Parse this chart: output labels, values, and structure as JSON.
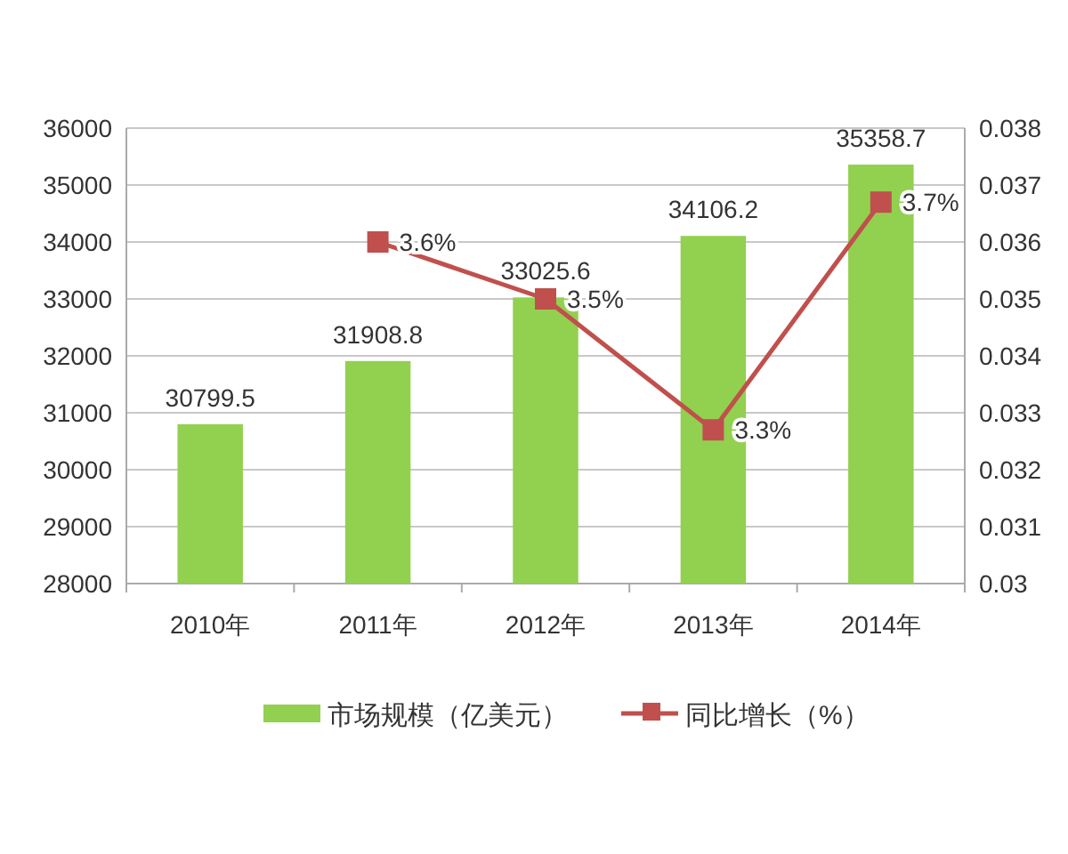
{
  "chart_data": {
    "type": "bar",
    "categories": [
      "2010年",
      "2011年",
      "2012年",
      "2013年",
      "2014年"
    ],
    "series": [
      {
        "name": "市场规模（亿美元）",
        "color": "#92d050",
        "values": [
          30799.5,
          31908.8,
          33025.6,
          34106.2,
          35358.7
        ],
        "value_labels": [
          "30799.5",
          "31908.8",
          "33025.6",
          "34106.2",
          "35358.7"
        ]
      },
      {
        "name": "同比增长（%）",
        "type": "line",
        "axis": "y2",
        "color": "#c0504d",
        "marker": "square",
        "values": [
          null,
          0.036,
          0.035,
          0.0327,
          0.0367
        ],
        "value_labels": [
          null,
          "3.6%",
          "3.5%",
          "3.3%",
          "3.7%"
        ]
      }
    ],
    "ylim": [
      28000,
      36000
    ],
    "yticks": [
      28000,
      29000,
      30000,
      31000,
      32000,
      33000,
      34000,
      35000,
      36000
    ],
    "y2lim": [
      0.03,
      0.038
    ],
    "y2ticks": [
      {
        "value": 0.03,
        "label": "0.03"
      },
      0.031,
      0.032,
      0.033,
      0.034,
      0.035,
      0.036,
      0.037,
      0.038
    ],
    "grid": "y",
    "legend": "bottom"
  }
}
